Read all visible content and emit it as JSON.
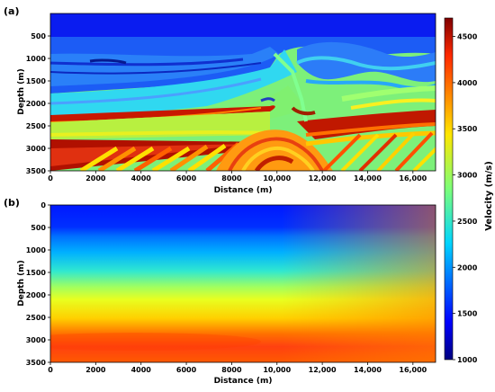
{
  "chart_data": [
    {
      "type": "heatmap",
      "panel_label": "(a)",
      "xlabel": "Distance (m)",
      "ylabel": "Depth (m)",
      "xlim": [
        0,
        17000
      ],
      "ylim": [
        3500,
        0
      ],
      "x_ticks": [
        0,
        2000,
        4000,
        6000,
        8000,
        10000,
        12000,
        14000,
        16000
      ],
      "x_tick_labels": [
        "0",
        "2000",
        "4000",
        "6000",
        "8000",
        "10,000",
        "12,000",
        "14,000",
        "16,000"
      ],
      "y_ticks": [
        500,
        1000,
        1500,
        2000,
        2500,
        3000,
        3500
      ],
      "y_tick_labels": [
        "500",
        "1000",
        "1500",
        "2000",
        "2500",
        "3000",
        "3500"
      ],
      "description_layers": [
        {
          "depth_top": 0,
          "depth_bottom": 500,
          "velocity": 1500
        },
        {
          "depth_top": 500,
          "depth_bottom": 1800,
          "velocity": 2000
        },
        {
          "depth_top": 1800,
          "depth_bottom": 2300,
          "velocity": 2700
        },
        {
          "depth_top": 2300,
          "depth_bottom": 2800,
          "velocity": 3200
        },
        {
          "depth_top": 2800,
          "depth_bottom": 3500,
          "velocity": 3900
        }
      ]
    },
    {
      "type": "heatmap",
      "panel_label": "(b)",
      "xlabel": "Distance (m)",
      "ylabel": "Depth (m)",
      "xlim": [
        0,
        17000
      ],
      "ylim": [
        3500,
        0
      ],
      "x_ticks": [
        0,
        2000,
        4000,
        6000,
        8000,
        10000,
        12000,
        14000,
        16000
      ],
      "x_tick_labels": [
        "0",
        "2000",
        "4000",
        "6000",
        "8000",
        "10,000",
        "12,000",
        "14,000",
        "16,000"
      ],
      "y_ticks": [
        0,
        500,
        1000,
        1500,
        2000,
        2500,
        3000,
        3500
      ],
      "y_tick_labels": [
        "0",
        "500",
        "1000",
        "1500",
        "2000",
        "2500",
        "3000",
        "3500"
      ]
    },
    {
      "type": "colorbar",
      "label": "Velocity (m/s)",
      "vmin": 1000,
      "vmax": 4700,
      "ticks": [
        1000,
        1500,
        2000,
        2500,
        3000,
        3500,
        4000,
        4500
      ],
      "tick_labels": [
        "1000",
        "1500",
        "2000",
        "2500",
        "3000",
        "3500",
        "4000",
        "4500"
      ],
      "colormap": "jet"
    }
  ]
}
